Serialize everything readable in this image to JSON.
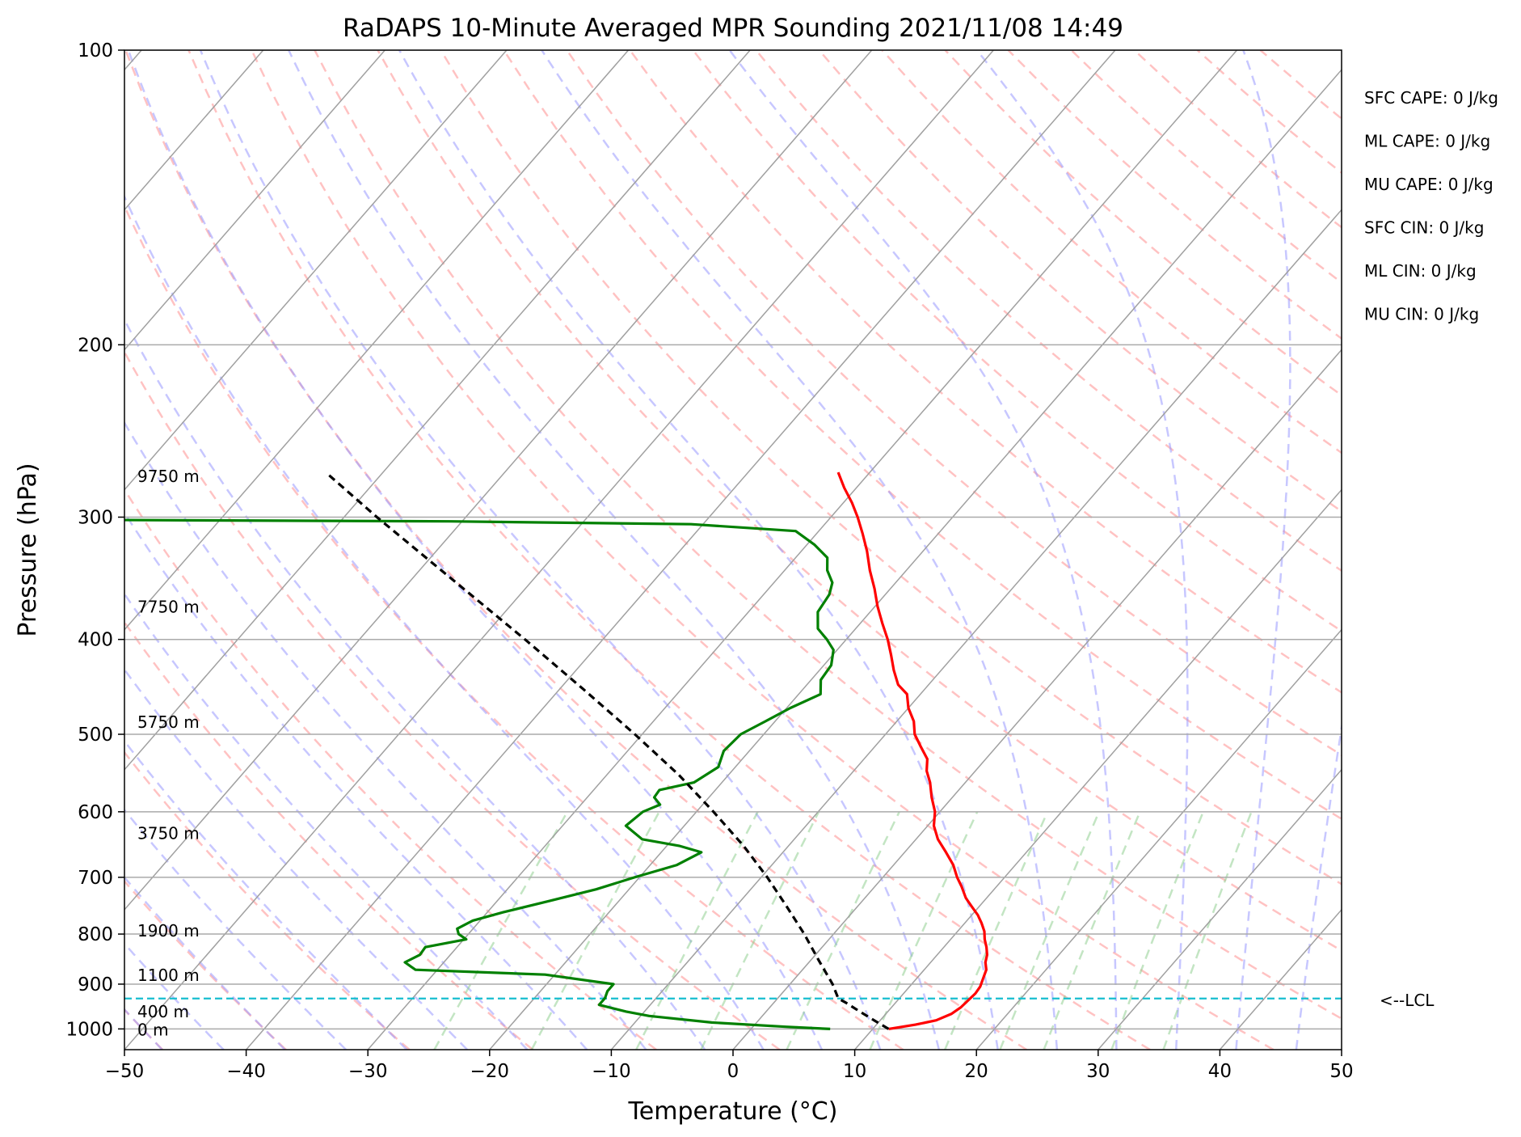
{
  "chart_data": {
    "type": "skew-t",
    "title": "RaDAPS 10-Minute Averaged MPR Sounding 2021/11/08 14:49",
    "xlabel": "Temperature (°C)",
    "ylabel": "Pressure (hPa)",
    "xlim": [
      -50,
      50
    ],
    "ylim": [
      1050,
      100
    ],
    "y_scale": "log",
    "x_ticks": [
      "−50",
      "−40",
      "−30",
      "−20",
      "−10",
      "0",
      "10",
      "20",
      "30",
      "40",
      "50"
    ],
    "y_ticks": [
      "100",
      "200",
      "300",
      "400",
      "500",
      "600",
      "700",
      "800",
      "900",
      "1000"
    ],
    "grid": true,
    "colors": {
      "temperature": "#ff0000",
      "dewpoint": "#008000",
      "parcel": "#000000",
      "lcl": "#17becf",
      "isotherm": "#a0a0a0",
      "dry_adiabat": "#ff9999",
      "moist_adiabat": "#9999ff",
      "mixing_ratio": "#88cc88"
    },
    "series": [
      {
        "key": "temperature",
        "p": [
          1000,
          990,
          980,
          965,
          950,
          935,
          920,
          905,
          895,
          880,
          870,
          855,
          840,
          825,
          810,
          795,
          780,
          765,
          750,
          735,
          715,
          700,
          680,
          660,
          640,
          620,
          600,
          580,
          560,
          545,
          530,
          515,
          500,
          485,
          470,
          455,
          445,
          430,
          415,
          400,
          385,
          370,
          355,
          340,
          325,
          312,
          300,
          290,
          280,
          270
        ],
        "t": [
          11.3,
          13.2,
          14.6,
          15.4,
          15.7,
          15.8,
          15.9,
          15.8,
          15.6,
          15.3,
          15.1,
          14.5,
          14.1,
          13.5,
          12.8,
          12.2,
          11.4,
          10.5,
          9.4,
          8.3,
          7.1,
          6.1,
          4.9,
          3.4,
          1.8,
          0.5,
          -0.4,
          -1.7,
          -2.9,
          -4.0,
          -4.8,
          -6.2,
          -7.6,
          -8.6,
          -10.0,
          -11.1,
          -12.5,
          -13.9,
          -15.2,
          -16.6,
          -18.2,
          -19.8,
          -21.3,
          -23.0,
          -24.6,
          -26.2,
          -27.8,
          -29.3,
          -31.0,
          -32.6
        ]
      },
      {
        "key": "dewpoint",
        "p": [
          1000,
          995,
          985,
          970,
          960,
          945,
          930,
          915,
          900,
          880,
          870,
          855,
          840,
          825,
          810,
          800,
          790,
          775,
          760,
          740,
          720,
          700,
          680,
          660,
          650,
          640,
          620,
          600,
          590,
          580,
          570,
          560,
          540,
          520,
          500,
          485,
          470,
          455,
          440,
          425,
          410,
          400,
          390,
          375,
          360,
          350,
          340,
          330,
          320,
          310,
          305,
          303,
          302
        ],
        "t": [
          6.5,
          2.7,
          -3.7,
          -9.3,
          -11.5,
          -14.2,
          -14.2,
          -14.5,
          -14.5,
          -20.8,
          -31.8,
          -33.2,
          -32.5,
          -32.6,
          -29.8,
          -30.8,
          -31.3,
          -30.6,
          -28.7,
          -25.7,
          -22.7,
          -20.4,
          -17.8,
          -16.7,
          -19.0,
          -22.5,
          -24.8,
          -24.4,
          -23.5,
          -24.5,
          -24.6,
          -22.3,
          -21.4,
          -22.1,
          -21.9,
          -20.8,
          -19.7,
          -18.2,
          -19.2,
          -19.4,
          -20.3,
          -21.6,
          -23.1,
          -24.3,
          -24.6,
          -25.2,
          -26.5,
          -27.4,
          -29.4,
          -31.9,
          -41.0,
          -61.0,
          -89.0
        ]
      },
      {
        "key": "parcel",
        "p": [
          1000,
          980,
          960,
          940,
          931,
          900,
          850,
          800,
          750,
          700,
          650,
          600,
          550,
          500,
          450,
          400,
          350,
          300,
          270
        ],
        "t": [
          11.3,
          9.5,
          7.7,
          5.9,
          5.0,
          3.5,
          0.6,
          -2.4,
          -5.8,
          -9.5,
          -13.7,
          -18.6,
          -24.1,
          -30.6,
          -38.0,
          -46.4,
          -56.1,
          -67.3,
          -74.7
        ]
      }
    ],
    "lcl": {
      "p": 931,
      "label": "<--LCL"
    },
    "height_labels": [
      {
        "p": 272,
        "text": "9750 m"
      },
      {
        "p": 370,
        "text": "7750 m"
      },
      {
        "p": 485,
        "text": "5750 m"
      },
      {
        "p": 630,
        "text": "3750 m"
      },
      {
        "p": 792,
        "text": "1900 m"
      },
      {
        "p": 880,
        "text": "1100 m"
      },
      {
        "p": 958,
        "text": "400 m"
      },
      {
        "p": 1000,
        "text": "0 m"
      }
    ],
    "indices": [
      "SFC CAPE: 0 J/kg",
      "ML CAPE: 0 J/kg",
      "MU CAPE: 0 J/kg",
      "SFC CIN: 0 J/kg",
      "ML CIN: 0 J/kg",
      "MU CIN: 0 J/kg"
    ]
  }
}
